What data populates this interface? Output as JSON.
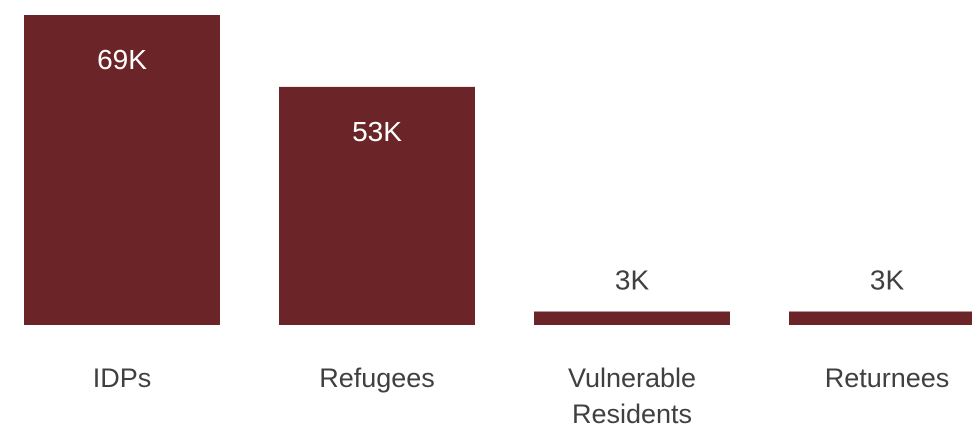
{
  "chart_data": {
    "type": "bar",
    "categories": [
      [
        "IDPs"
      ],
      [
        "Refugees"
      ],
      [
        "Vulnerable",
        "Residents"
      ],
      [
        "Returnees"
      ]
    ],
    "values": [
      69000,
      53000,
      3000,
      3000
    ],
    "data_labels": [
      "69K",
      "53K",
      "3K",
      "3K"
    ],
    "title": "",
    "xlabel": "",
    "ylabel": "",
    "ylim": [
      0,
      69000
    ],
    "grid": false,
    "legend": "none"
  },
  "colors": {
    "bar": "#6b2428",
    "label_inside": "#ffffff",
    "label_outside": "#404040"
  }
}
